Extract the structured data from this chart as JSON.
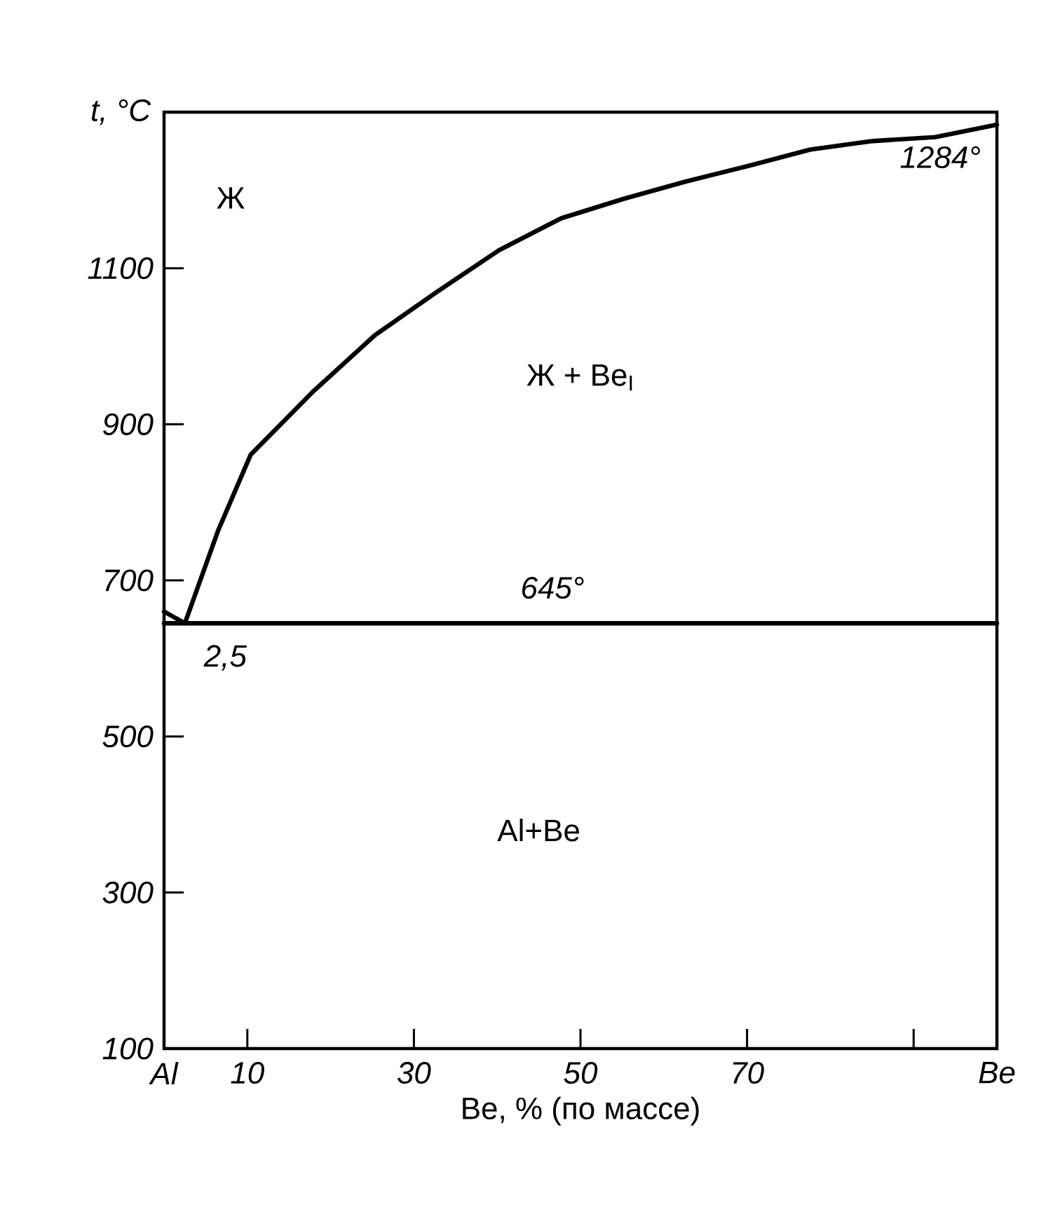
{
  "chart_data": {
    "type": "line",
    "xlabel": "Be, % (по массе)",
    "ylabel": "t, °C",
    "xlim": [
      0,
      100
    ],
    "ylim": [
      100,
      1300
    ],
    "xticks": [
      {
        "value": 0,
        "label": "Al"
      },
      10,
      30,
      50,
      70,
      {
        "value": 90,
        "label": null
      },
      {
        "value": 100,
        "label": "Be"
      }
    ],
    "yticks": [
      100,
      300,
      500,
      700,
      900,
      1100
    ],
    "series": [
      {
        "color": "#000000",
        "x": [
          0,
          2.5,
          6.5,
          10.4,
          17.8,
          25.3,
          32.8,
          40.2,
          47.7,
          55.2,
          62.6,
          70.1,
          77.6,
          85.1,
          92.6,
          100
        ],
        "values": [
          660,
          645,
          764,
          861,
          941,
          1014,
          1070,
          1123,
          1164,
          1189,
          1211,
          1231,
          1252,
          1263,
          1268,
          1284
        ]
      },
      {
        "color": "#000000",
        "x": [
          0,
          100
        ],
        "values": [
          645,
          645
        ]
      }
    ],
    "annotations": [
      "Ж",
      "Ж + Be$_{I}$",
      "Al+Be",
      {
        "text": "1284°",
        "x": 100,
        "y": 1284
      },
      {
        "text": "645°",
        "x": 50,
        "y": 645
      },
      {
        "text": "2,5",
        "x": 2.5,
        "y": 645
      }
    ],
    "marker": "none",
    "line_style": "solid"
  }
}
